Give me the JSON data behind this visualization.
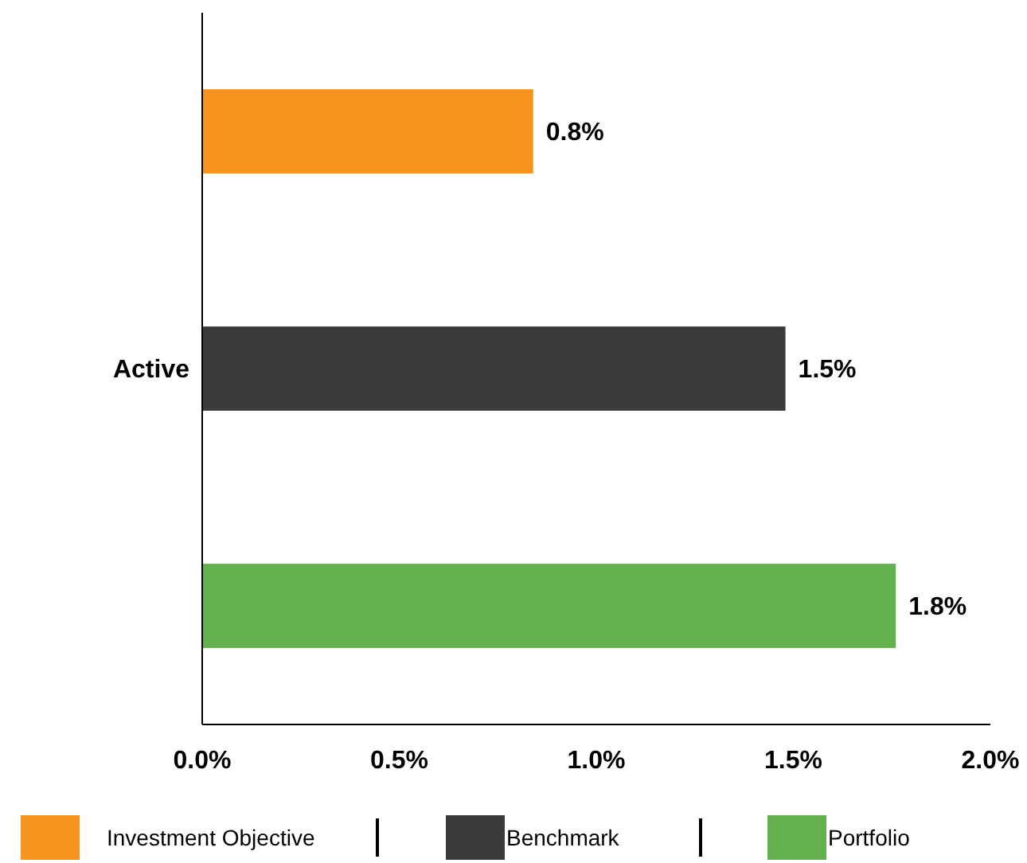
{
  "chart_data": {
    "type": "bar",
    "orientation": "horizontal",
    "categories": [
      "Active"
    ],
    "series": [
      {
        "name": "Investment Objective",
        "color": "#f7941d",
        "values": [
          0.84
        ],
        "value_labels": [
          "0.8%"
        ]
      },
      {
        "name": "Benchmark",
        "color": "#3a3a3a",
        "values": [
          1.48
        ],
        "value_labels": [
          "1.5%"
        ]
      },
      {
        "name": "Portfolio",
        "color": "#62b04f",
        "values": [
          1.76
        ],
        "value_labels": [
          "1.8%"
        ]
      }
    ],
    "xlim": [
      0,
      2
    ],
    "xticks": [
      {
        "value": 0,
        "label": "0.0%"
      },
      {
        "value": 0.5,
        "label": "0.5%"
      },
      {
        "value": 1,
        "label": "1.0%"
      },
      {
        "value": 1.5,
        "label": "1.5%"
      },
      {
        "value": 2,
        "label": "2.0%"
      }
    ],
    "grid": false,
    "legend": "bottom"
  }
}
